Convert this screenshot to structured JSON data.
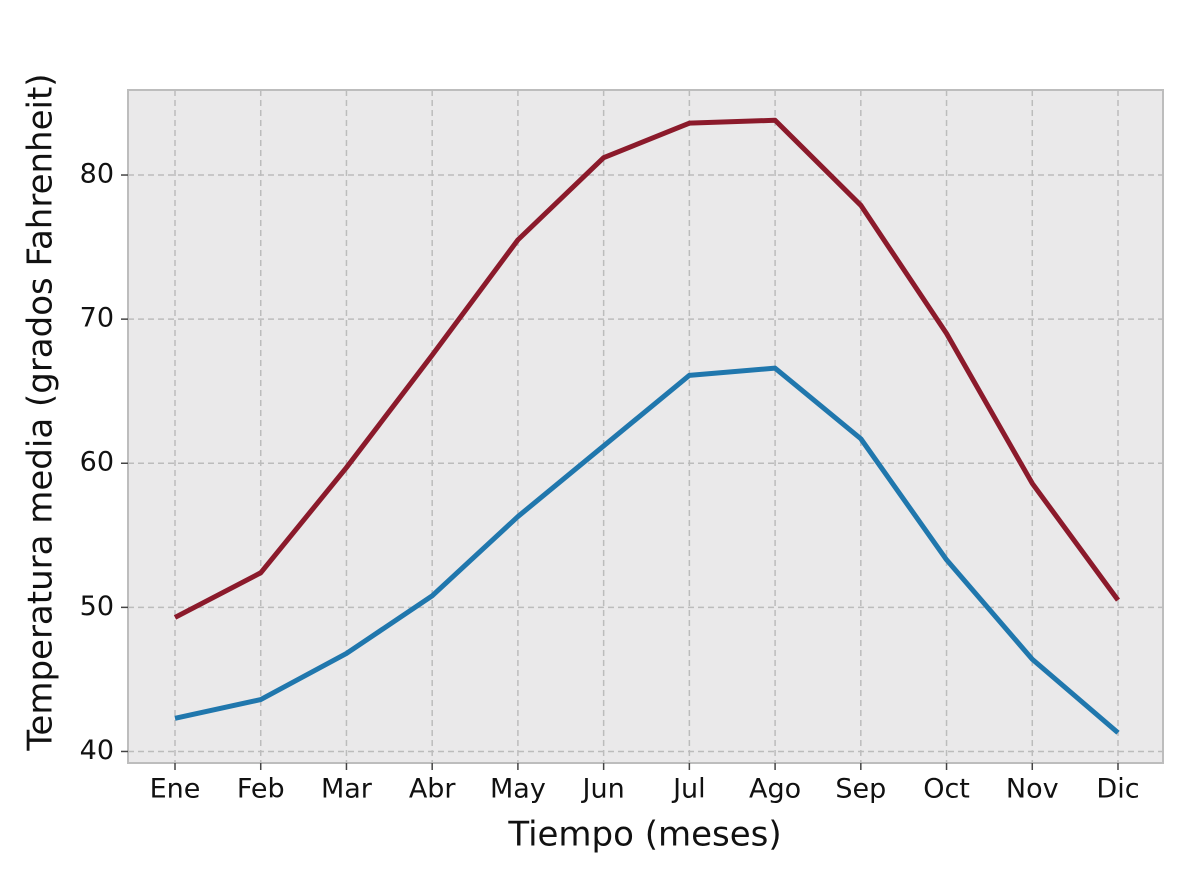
{
  "chart_data": {
    "type": "line",
    "x_label": "Tiempo (meses)",
    "y_label": "Temperatura media (grados Fahrenheit)",
    "categories": [
      "Ene",
      "Feb",
      "Mar",
      "Abr",
      "May",
      "Jun",
      "Jul",
      "Ago",
      "Sep",
      "Oct",
      "Nov",
      "Dic"
    ],
    "series": [
      {
        "color": "#8b1a2b",
        "values": [
          49.3,
          52.4,
          59.7,
          67.5,
          75.5,
          81.2,
          83.6,
          83.8,
          77.9,
          69.0,
          58.6,
          50.5
        ]
      },
      {
        "color": "#2077ad",
        "values": [
          42.3,
          43.6,
          46.8,
          50.8,
          56.3,
          61.2,
          66.1,
          66.6,
          61.7,
          53.3,
          46.4,
          41.3
        ]
      }
    ],
    "ylim": [
      39.2,
      85.9
    ],
    "yticks": [
      40,
      50,
      60,
      70,
      80
    ],
    "grid": true
  }
}
